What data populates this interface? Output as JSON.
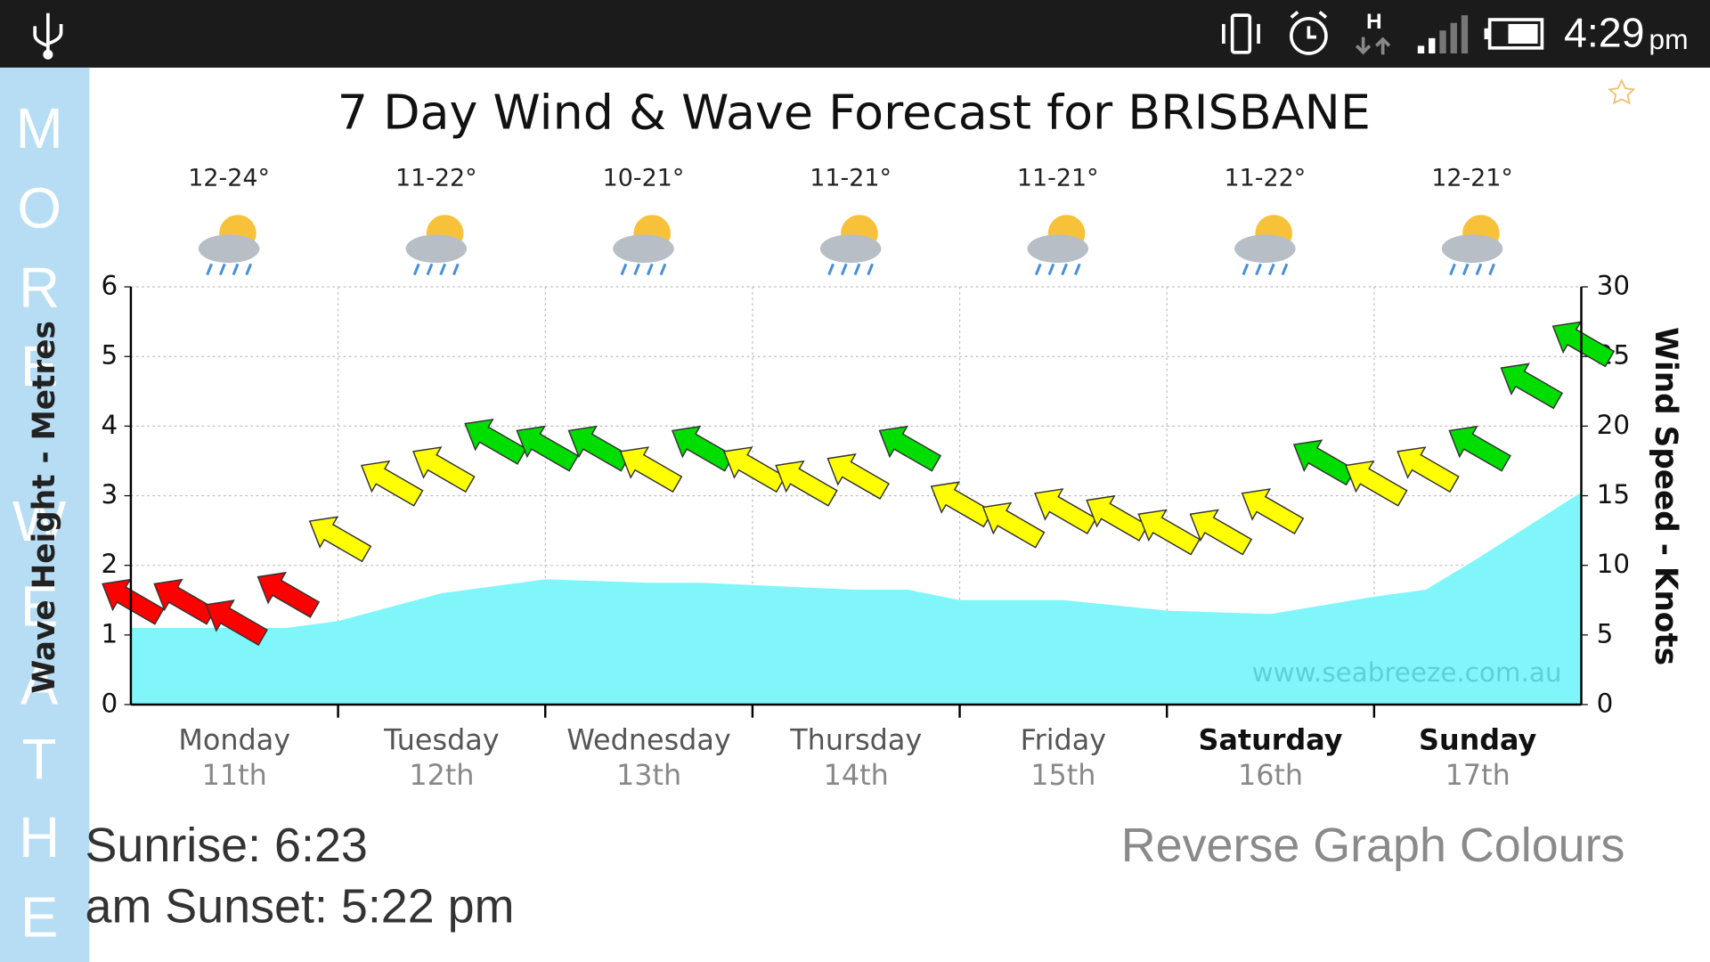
{
  "status_bar": {
    "network": "H",
    "time": "4:29",
    "time_suffix": "pm"
  },
  "side_tab": {
    "letters": [
      "M",
      "O",
      "R",
      "E",
      "W",
      "E",
      "A",
      "T",
      "H",
      "E"
    ]
  },
  "chart_data": {
    "type": "area",
    "title": "7 Day Wind & Wave Forecast for BRISBANE",
    "categories": [
      "Monday",
      "Tuesday",
      "Wednesday",
      "Thursday",
      "Friday",
      "Saturday",
      "Sunday"
    ],
    "dates": [
      "11th",
      "12th",
      "13th",
      "14th",
      "15th",
      "16th",
      "17th"
    ],
    "temperatures": [
      "12-24°",
      "11-22°",
      "10-21°",
      "11-21°",
      "11-21°",
      "11-22°",
      "12-21°"
    ],
    "ylabel": "Wave Height - Metres",
    "y2label": "Wind Speed - Knots",
    "watermark": "www.seabreeze.com.au",
    "xlim": [
      0,
      7
    ],
    "ylim": [
      0,
      6
    ],
    "yticks": [
      0,
      1,
      2,
      3,
      4,
      5,
      6
    ],
    "y2lim": [
      0,
      30
    ],
    "y2ticks": [
      0,
      5,
      10,
      15,
      20,
      25,
      30
    ],
    "grid": true,
    "series": [
      {
        "type": "area",
        "color": "#80f6fb",
        "x": [
          0,
          0.75,
          1,
          1.5,
          2,
          2.5,
          2.75,
          3.5,
          3.75,
          4,
          4.5,
          5,
          5.5,
          6,
          6.25,
          6.5,
          7
        ],
        "values": [
          1.1,
          1.1,
          1.2,
          1.6,
          1.8,
          1.75,
          1.75,
          1.65,
          1.65,
          1.5,
          1.5,
          1.35,
          1.3,
          1.55,
          1.65,
          2.1,
          3.05
        ]
      },
      {
        "type": "arrow",
        "axis": "y2",
        "x": [
          0,
          0.25,
          0.5,
          0.75,
          1,
          1.25,
          1.5,
          1.75,
          2,
          2.25,
          2.5,
          2.75,
          3,
          3.25,
          3.5,
          3.75,
          4,
          4.25,
          4.5,
          4.75,
          5,
          5.25,
          5.5,
          5.75,
          6,
          6.25,
          6.5,
          6.75,
          7
        ],
        "values": [
          7.5,
          7.5,
          6,
          8,
          12,
          16,
          17,
          19,
          18.5,
          18.5,
          17,
          18.5,
          17,
          16,
          16.5,
          18.5,
          14.5,
          13,
          14,
          13.5,
          12.5,
          12.5,
          14,
          17.5,
          16,
          17,
          18.5,
          23,
          26
        ],
        "colors": [
          "#ff0000",
          "#ff0000",
          "#ff0000",
          "#ff0000",
          "#ffff00",
          "#ffff00",
          "#ffff00",
          "#00dd00",
          "#00dd00",
          "#00dd00",
          "#ffff00",
          "#00dd00",
          "#ffff00",
          "#ffff00",
          "#ffff00",
          "#00dd00",
          "#ffff00",
          "#ffff00",
          "#ffff00",
          "#ffff00",
          "#ffff00",
          "#ffff00",
          "#ffff00",
          "#00dd00",
          "#ffff00",
          "#ffff00",
          "#00dd00",
          "#00dd00",
          "#00dd00"
        ]
      }
    ]
  },
  "footer": {
    "sun_lines": [
      "Sunrise: 6:23",
      "am  Sunset: 5:22 pm"
    ],
    "reverse_button": "Reverse Graph Colours"
  }
}
